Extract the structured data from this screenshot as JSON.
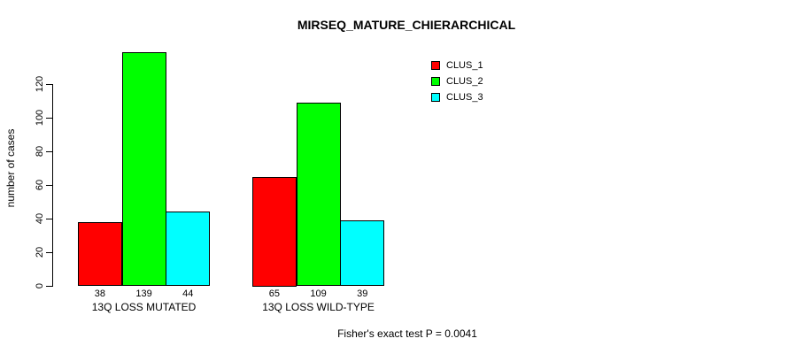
{
  "chart_data": {
    "type": "bar",
    "title": "MIRSEQ_MATURE_CHIERARCHICAL",
    "xlabel": "",
    "ylabel": "number of cases",
    "categories": [
      "13Q LOSS MUTATED",
      "13Q LOSS WILD-TYPE"
    ],
    "series": [
      {
        "name": "CLUS_1",
        "color": "#ff0000",
        "values": [
          38,
          65
        ]
      },
      {
        "name": "CLUS_2",
        "color": "#00ff00",
        "values": [
          139,
          109
        ]
      },
      {
        "name": "CLUS_3",
        "color": "#00ffff",
        "values": [
          44,
          39
        ]
      }
    ],
    "bar_value_labels": [
      [
        "38",
        "139",
        "44"
      ],
      [
        "65",
        "109",
        "39"
      ]
    ],
    "yticks": [
      0,
      20,
      40,
      60,
      80,
      100,
      120
    ],
    "ylim": [
      0,
      120
    ],
    "grid": false,
    "legend_position": "top-right",
    "legend_entries": [
      "CLUS_1",
      "CLUS_2",
      "CLUS_3"
    ],
    "annotation": "Fisher's exact test P = 0.0041"
  }
}
